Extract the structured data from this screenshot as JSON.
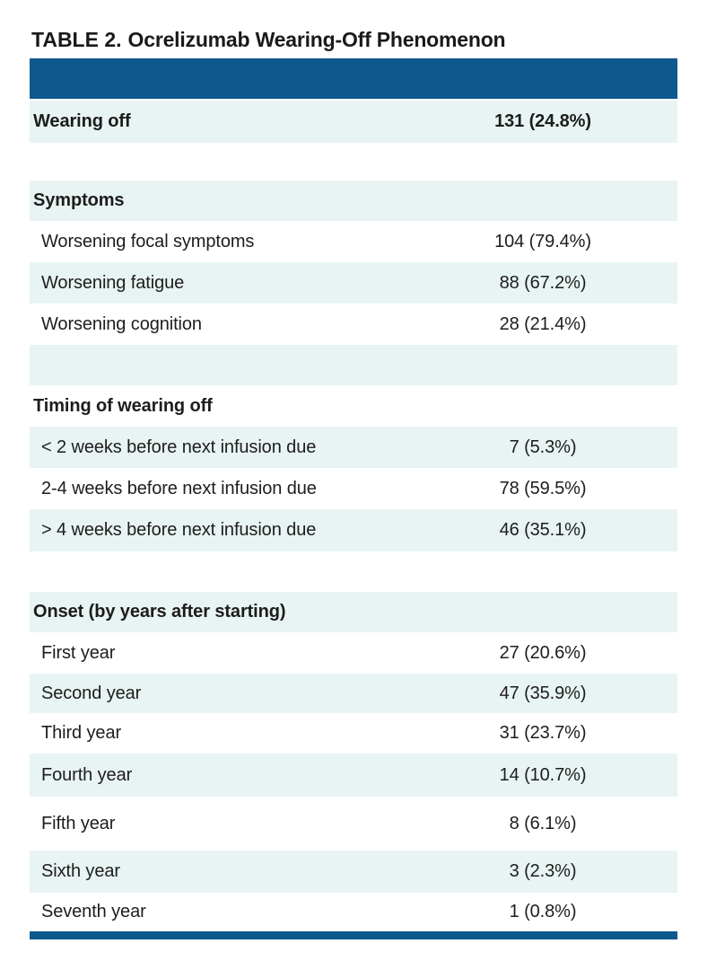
{
  "title": {
    "prefix": "TABLE 2.",
    "text": "Ocrelizumab Wearing-Off Phenomenon"
  },
  "colors": {
    "accent_blue": "#0d588d",
    "row_tint": "#e8f4f3",
    "text": "#1d1d1b"
  },
  "table": {
    "wearing_off": {
      "label": "Wearing off",
      "value": "131 (24.8%)"
    },
    "sections": {
      "symptoms": {
        "header": "Symptoms",
        "rows": [
          {
            "label": "Worsening focal symptoms",
            "value": "104 (79.4%)"
          },
          {
            "label": "Worsening fatigue",
            "value": "88 (67.2%)"
          },
          {
            "label": "Worsening cognition",
            "value": "28 (21.4%)"
          }
        ]
      },
      "timing": {
        "header": "Timing of wearing off",
        "rows": [
          {
            "label": "< 2 weeks before next infusion due",
            "value": "7 (5.3%)"
          },
          {
            "label": "2-4 weeks before next infusion due",
            "value": "78 (59.5%)"
          },
          {
            "label": "> 4 weeks before next infusion due",
            "value": "46 (35.1%)"
          }
        ]
      },
      "onset": {
        "header": "Onset (by years after starting)",
        "rows": [
          {
            "label": "First year",
            "value": "27 (20.6%)"
          },
          {
            "label": "Second year",
            "value": "47 (35.9%)"
          },
          {
            "label": "Third year",
            "value": "31 (23.7%)"
          },
          {
            "label": "Fourth year",
            "value": "14 (10.7%)"
          },
          {
            "label": "Fifth year",
            "value": "8 (6.1%)"
          },
          {
            "label": "Sixth year",
            "value": "3 (2.3%)"
          },
          {
            "label": "Seventh year",
            "value": "1 (0.8%)"
          }
        ]
      }
    }
  }
}
